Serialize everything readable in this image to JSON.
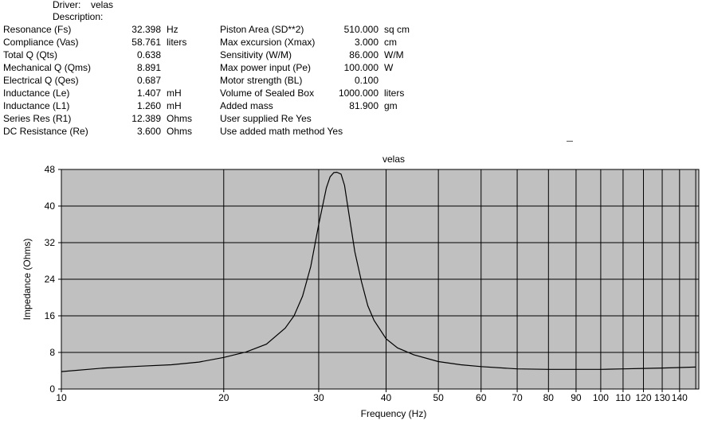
{
  "header": {
    "driver_label": "Driver:",
    "driver_value": "velas",
    "description_label": "Description:"
  },
  "params_left": [
    {
      "label": "Resonance (Fs)",
      "value": "32.398",
      "unit": "Hz"
    },
    {
      "label": "Compliance (Vas)",
      "value": "58.761",
      "unit": "liters"
    },
    {
      "label": "Total Q (Qts)",
      "value": "0.638",
      "unit": ""
    },
    {
      "label": "Mechanical Q (Qms)",
      "value": "8.891",
      "unit": ""
    },
    {
      "label": "Electrical Q (Qes)",
      "value": "0.687",
      "unit": ""
    },
    {
      "label": "Inductance (Le)",
      "value": "1.407",
      "unit": "mH"
    },
    {
      "label": "Inductance (L1)",
      "value": "1.260",
      "unit": "mH"
    },
    {
      "label": "Series Res (R1)",
      "value": "12.389",
      "unit": "Ohms"
    },
    {
      "label": "DC Resistance (Re)",
      "value": "3.600",
      "unit": "Ohms"
    }
  ],
  "params_right": [
    {
      "label": "Piston Area (SD**2)",
      "value": "510.000",
      "unit": "sq cm"
    },
    {
      "label": "Max excursion (Xmax)",
      "value": "3.000",
      "unit": "cm"
    },
    {
      "label": "Sensitivity (W/M)",
      "value": "86.000",
      "unit": "W/M"
    },
    {
      "label": "Max power input (Pe)",
      "value": "100.000",
      "unit": "W"
    },
    {
      "label": "Motor strength (BL)",
      "value": "0.100",
      "unit": ""
    },
    {
      "label": "Volume of Sealed Box",
      "value": "1000.000",
      "unit": "liters"
    },
    {
      "label": "Added mass",
      "value": "81.900",
      "unit": "gm"
    }
  ],
  "flags": [
    {
      "label": "User supplied Re",
      "value": "Yes"
    },
    {
      "label": "Use added math method",
      "value": "Yes"
    }
  ],
  "colors": {
    "plot_bg": "#c0c0c0",
    "grid": "#000000",
    "curve": "#000000"
  },
  "chart_data": {
    "type": "line",
    "title": "velas",
    "xlabel": "Frequency (Hz)",
    "ylabel": "Impedance (Ohms)",
    "x_scale": "log",
    "xlim": [
      10,
      150
    ],
    "ylim": [
      0,
      48
    ],
    "grid": true,
    "x_ticks": [
      10,
      20,
      30,
      40,
      50,
      60,
      70,
      80,
      90,
      100,
      110,
      120,
      130,
      140
    ],
    "x_tick_labels": [
      "10",
      "20",
      "30",
      "40",
      "50",
      "60",
      "70",
      "80",
      "90",
      "100",
      "110",
      "120",
      "130",
      "140"
    ],
    "y_ticks": [
      0,
      8,
      16,
      24,
      32,
      40,
      48
    ],
    "y_tick_labels": [
      "0",
      "8",
      "16",
      "24",
      "32",
      "40",
      "48"
    ],
    "series": [
      {
        "x": [
          10,
          12,
          14,
          16,
          18,
          20,
          22,
          24,
          26,
          27,
          28,
          29,
          30,
          31,
          31.5,
          32,
          32.4,
          33,
          33.5,
          34,
          35,
          36,
          37,
          38,
          40,
          42,
          45,
          50,
          55,
          60,
          70,
          80,
          90,
          100,
          110,
          120,
          130,
          140,
          150
        ],
        "y": [
          3.8,
          4.6,
          5.0,
          5.3,
          5.9,
          6.9,
          8.1,
          9.8,
          13.3,
          16.0,
          20.3,
          26.8,
          36.0,
          44.0,
          46.4,
          47.3,
          47.4,
          47.0,
          44.5,
          39.5,
          30.0,
          23.5,
          18.2,
          15.0,
          11.0,
          9.0,
          7.5,
          6.0,
          5.3,
          4.9,
          4.4,
          4.3,
          4.3,
          4.3,
          4.4,
          4.5,
          4.6,
          4.7,
          4.8
        ]
      }
    ]
  }
}
